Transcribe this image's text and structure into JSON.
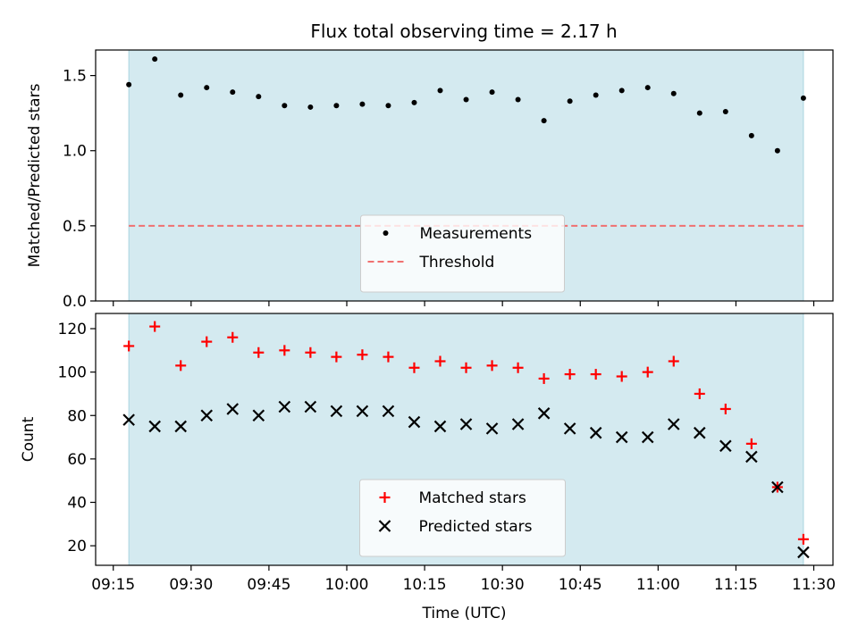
{
  "title": "Flux total observing time = 2.17 h",
  "chart_data": [
    {
      "type": "scatter",
      "name": "ratio-panel",
      "ylabel": "Matched/Predicted stars",
      "ylim": [
        0,
        1.67
      ],
      "yticks": [
        0.0,
        0.5,
        1.0,
        1.5
      ],
      "ytick_labels": [
        "0.0",
        "0.5",
        "1.0",
        "1.5"
      ],
      "xlim_minutes": [
        1.6,
        8.1
      ],
      "x_axis_type": "time",
      "shaded_span": [
        "09:18",
        "11:28"
      ],
      "grid": false,
      "legend_position": "lower center",
      "series": [
        {
          "name": "Measurements",
          "marker": "dot",
          "color": "#000000",
          "x": [
            "09:18",
            "09:23",
            "09:28",
            "09:33",
            "09:38",
            "09:43",
            "09:48",
            "09:53",
            "09:58",
            "10:03",
            "10:08",
            "10:13",
            "10:18",
            "10:23",
            "10:28",
            "10:33",
            "10:38",
            "10:43",
            "10:48",
            "10:53",
            "10:58",
            "11:03",
            "11:08",
            "11:13",
            "11:18",
            "11:23",
            "11:28"
          ],
          "y": [
            1.44,
            1.61,
            1.37,
            1.42,
            1.39,
            1.36,
            1.3,
            1.29,
            1.3,
            1.31,
            1.3,
            1.32,
            1.4,
            1.34,
            1.39,
            1.34,
            1.2,
            1.33,
            1.37,
            1.4,
            1.42,
            1.38,
            1.25,
            1.26,
            1.1,
            1.0,
            1.35
          ]
        }
      ],
      "hlines": [
        {
          "name": "Threshold",
          "y": 0.5,
          "color": "#f07070",
          "style": "dashed"
        }
      ]
    },
    {
      "type": "scatter",
      "name": "count-panel",
      "xlabel": "Time (UTC)",
      "ylabel": "Count",
      "ylim": [
        11,
        127
      ],
      "yticks": [
        20,
        40,
        60,
        80,
        100,
        120
      ],
      "ytick_labels": [
        "20",
        "40",
        "60",
        "80",
        "100",
        "120"
      ],
      "x_axis_type": "time",
      "xticks": [
        "09:15",
        "09:30",
        "09:45",
        "10:00",
        "10:15",
        "10:30",
        "10:45",
        "11:00",
        "11:15",
        "11:30"
      ],
      "shaded_span": [
        "09:18",
        "11:28"
      ],
      "grid": false,
      "legend_position": "lower center",
      "series": [
        {
          "name": "Matched stars",
          "marker": "plus",
          "color": "#ff0000",
          "x": [
            "09:18",
            "09:23",
            "09:28",
            "09:33",
            "09:38",
            "09:43",
            "09:48",
            "09:53",
            "09:58",
            "10:03",
            "10:08",
            "10:13",
            "10:18",
            "10:23",
            "10:28",
            "10:33",
            "10:38",
            "10:43",
            "10:48",
            "10:53",
            "10:58",
            "11:03",
            "11:08",
            "11:13",
            "11:18",
            "11:23",
            "11:28"
          ],
          "y": [
            112,
            121,
            103,
            114,
            116,
            109,
            110,
            109,
            107,
            108,
            107,
            102,
            105,
            102,
            103,
            102,
            97,
            99,
            99,
            98,
            100,
            105,
            90,
            83,
            67,
            47,
            23
          ]
        },
        {
          "name": "Predicted stars",
          "marker": "x",
          "color": "#000000",
          "x": [
            "09:18",
            "09:23",
            "09:28",
            "09:33",
            "09:38",
            "09:43",
            "09:48",
            "09:53",
            "09:58",
            "10:03",
            "10:08",
            "10:13",
            "10:18",
            "10:23",
            "10:28",
            "10:33",
            "10:38",
            "10:43",
            "10:48",
            "10:53",
            "10:58",
            "11:03",
            "11:08",
            "11:13",
            "11:18",
            "11:23",
            "11:28"
          ],
          "y": [
            78,
            75,
            75,
            80,
            83,
            80,
            84,
            84,
            82,
            82,
            82,
            77,
            75,
            76,
            74,
            76,
            81,
            74,
            72,
            70,
            70,
            76,
            72,
            66,
            61,
            47,
            17
          ]
        }
      ]
    }
  ],
  "colors": {
    "shade": "#d4eaf0",
    "shade_edge": "#a8d4e0",
    "matched": "#ff0000",
    "predicted": "#000000",
    "measurement": "#000000",
    "threshold": "#f07070"
  }
}
